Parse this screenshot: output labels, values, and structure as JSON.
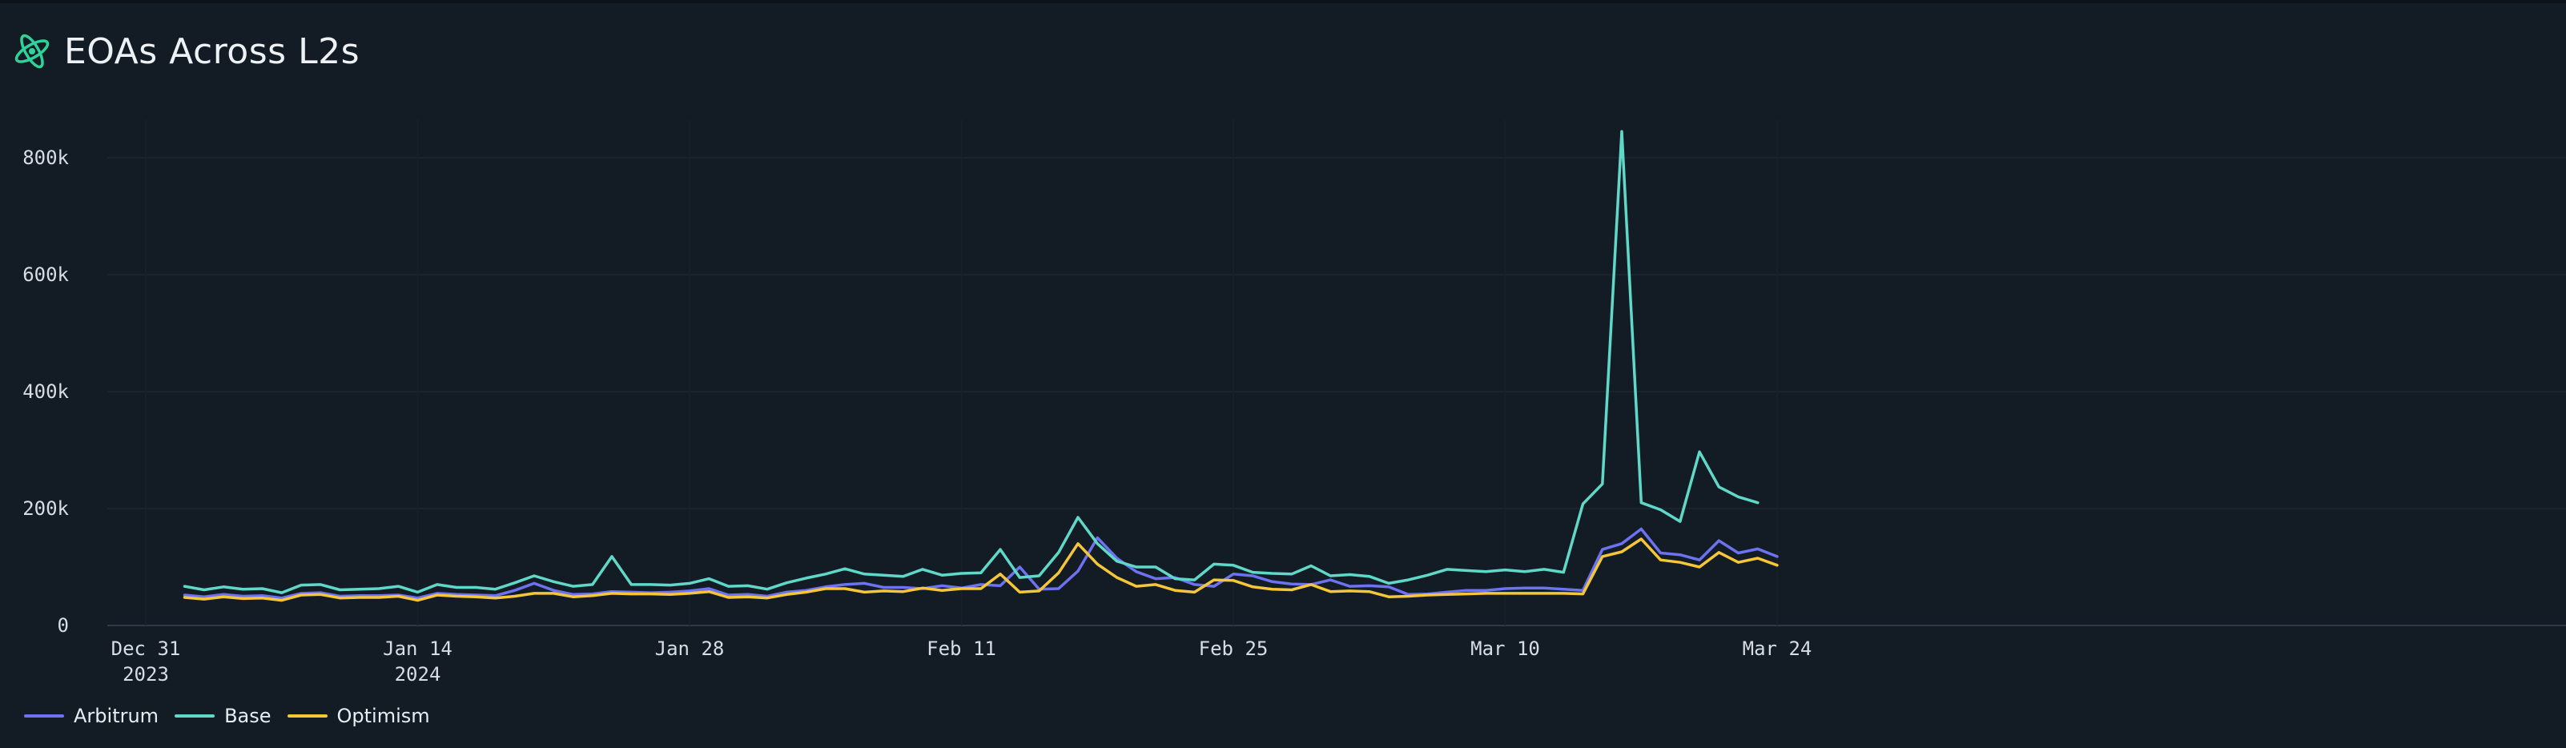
{
  "header": {
    "title": "EOAs Across L2s",
    "icon": "orbit-logo-icon"
  },
  "chart_data": {
    "type": "line",
    "title": "EOAs Across L2s",
    "xlabel": "",
    "ylabel": "",
    "ylim": [
      0,
      880000
    ],
    "grid": true,
    "legend_position": "bottom-left",
    "x_ticks": [
      {
        "date": "2023-12-31",
        "label": [
          "Dec 31",
          "2023"
        ]
      },
      {
        "date": "2024-01-14",
        "label": [
          "Jan 14",
          "2024"
        ]
      },
      {
        "date": "2024-01-28",
        "label": [
          "Jan 28"
        ]
      },
      {
        "date": "2024-02-11",
        "label": [
          "Feb 11"
        ]
      },
      {
        "date": "2024-02-25",
        "label": [
          "Feb 25"
        ]
      },
      {
        "date": "2024-03-10",
        "label": [
          "Mar 10"
        ]
      },
      {
        "date": "2024-03-24",
        "label": [
          "Mar 24"
        ]
      }
    ],
    "y_ticks": [
      {
        "value": 0,
        "label": "0"
      },
      {
        "value": 200000,
        "label": "200k"
      },
      {
        "value": 400000,
        "label": "400k"
      },
      {
        "value": 600000,
        "label": "600k"
      },
      {
        "value": 800000,
        "label": "800k"
      }
    ],
    "x_start": "2024-01-02",
    "series": [
      {
        "name": "Arbitrum",
        "color": "#6c72f0",
        "values": [
          52000,
          49000,
          53000,
          50000,
          51000,
          47000,
          55000,
          56000,
          50000,
          51000,
          51000,
          52000,
          47000,
          55000,
          53000,
          52000,
          51000,
          60000,
          72000,
          60000,
          53000,
          54000,
          58000,
          57000,
          56000,
          57000,
          59000,
          63000,
          52000,
          53000,
          50000,
          57000,
          60000,
          66000,
          70000,
          72000,
          65000,
          65000,
          63000,
          68000,
          64000,
          70000,
          68000,
          100000,
          62000,
          63000,
          93000,
          150000,
          115000,
          92000,
          80000,
          82000,
          70000,
          67000,
          88000,
          85000,
          75000,
          71000,
          70000,
          78000,
          67000,
          68000,
          66000,
          53000,
          54000,
          57000,
          60000,
          60000,
          63000,
          64000,
          64000,
          62000,
          60000,
          130000,
          140000,
          165000,
          124000,
          121000,
          112000,
          145000,
          124000,
          131000,
          118000
        ]
      },
      {
        "name": "Base",
        "color": "#5fd8c8",
        "values": [
          67000,
          61000,
          66000,
          62000,
          63000,
          56000,
          69000,
          70000,
          61000,
          62000,
          63000,
          67000,
          57000,
          70000,
          65000,
          65000,
          62000,
          73000,
          85000,
          75000,
          67000,
          70000,
          118000,
          70000,
          70000,
          69000,
          72000,
          80000,
          67000,
          68000,
          62000,
          73000,
          81000,
          88000,
          97000,
          88000,
          86000,
          84000,
          96000,
          86000,
          89000,
          90000,
          130000,
          82000,
          85000,
          125000,
          185000,
          140000,
          110000,
          100000,
          100000,
          80000,
          78000,
          105000,
          103000,
          91000,
          89000,
          88000,
          102000,
          85000,
          87000,
          84000,
          72000,
          78000,
          86000,
          96000,
          94000,
          92000,
          95000,
          92000,
          96000,
          91000,
          208000,
          242000,
          845000,
          210000,
          198000,
          178000,
          297000,
          237000,
          220000,
          210000
        ]
      },
      {
        "name": "Optimism",
        "color": "#f5c63a",
        "values": [
          48000,
          45000,
          49000,
          46000,
          47000,
          43000,
          52000,
          53000,
          47000,
          48000,
          48000,
          50000,
          43000,
          52000,
          50000,
          49000,
          47000,
          50000,
          55000,
          55000,
          49000,
          51000,
          55000,
          54000,
          54000,
          53000,
          55000,
          58000,
          48000,
          49000,
          47000,
          53000,
          57000,
          63000,
          63000,
          57000,
          59000,
          58000,
          64000,
          60000,
          63000,
          63000,
          88000,
          57000,
          59000,
          90000,
          140000,
          105000,
          82000,
          67000,
          70000,
          60000,
          57000,
          78000,
          77000,
          66000,
          62000,
          61000,
          70000,
          58000,
          59000,
          58000,
          49000,
          50000,
          52000,
          53000,
          54000,
          55000,
          55000,
          55000,
          55000,
          55000,
          54000,
          118000,
          126000,
          148000,
          112000,
          108000,
          100000,
          125000,
          108000,
          115000,
          103000
        ]
      }
    ]
  }
}
